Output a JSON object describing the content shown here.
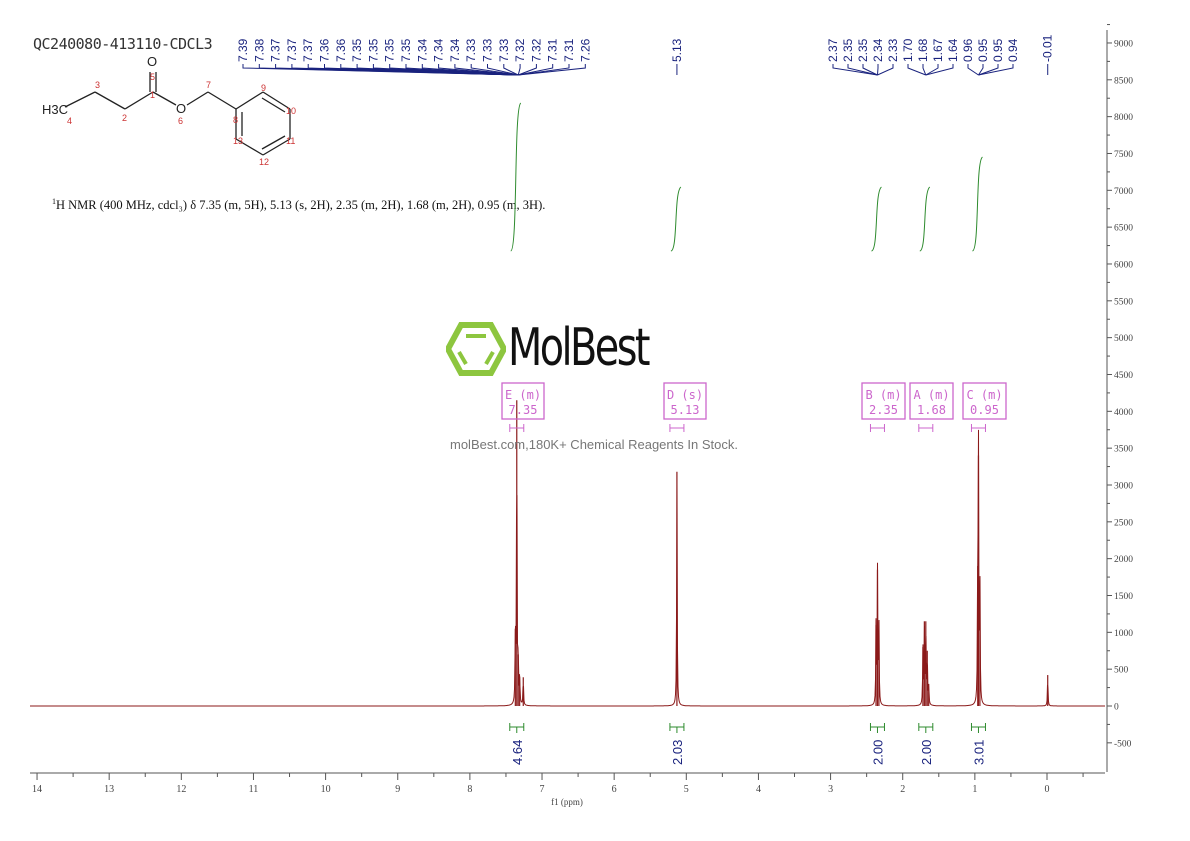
{
  "title": "QC240080-413110-CDCL3",
  "summary": {
    "sup": "1",
    "text": "H NMR (400 MHz, cdcl₃) δ 7.35 (m, 5H), 5.13 (s, 2H), 2.35 (m, 2H), 1.68 (m, 2H), 0.95 (m, 3H)."
  },
  "structure": {
    "atoms": [
      "O",
      "O",
      "H3C"
    ],
    "numbers": [
      "1",
      "2",
      "3",
      "4",
      "5",
      "6",
      "7",
      "8",
      "9",
      "10",
      "11",
      "12",
      "13"
    ]
  },
  "watermark": {
    "logo": "MolBest",
    "tagline": "molBest.com,180K+ Chemical Reagents In Stock.",
    "logo_color": "#8dc63f"
  },
  "colors": {
    "spectrum": "#8b1a1a",
    "peak_labels": "#1a237e",
    "integral": "#2e8b2e",
    "multiplet_box": "#cc66cc",
    "axis": "#555555"
  },
  "chart_data": {
    "type": "line",
    "xlabel": "f1 (ppm)",
    "ylabel": "",
    "xlim": [
      14.1,
      -0.8
    ],
    "ylim": [
      -850,
      9200
    ],
    "x_reversed": true,
    "x_ticks": [
      "14",
      "13",
      "12",
      "11",
      "10",
      "9",
      "8",
      "7",
      "6",
      "5",
      "4",
      "3",
      "2",
      "1",
      "0"
    ],
    "y_ticks": [
      "-500",
      "0",
      "500",
      "1000",
      "1500",
      "2000",
      "2500",
      "3000",
      "3500",
      "4000",
      "4500",
      "5000",
      "5500",
      "6000",
      "6500",
      "7000",
      "7500",
      "8000",
      "8500",
      "9000"
    ],
    "peaks": [
      {
        "ppm": 7.37,
        "intensity": 1050
      },
      {
        "ppm": 7.35,
        "intensity": 4150
      },
      {
        "ppm": 7.33,
        "intensity": 700
      },
      {
        "ppm": 7.31,
        "intensity": 400
      },
      {
        "ppm": 7.26,
        "intensity": 390
      },
      {
        "ppm": 5.13,
        "intensity": 3180
      },
      {
        "ppm": 2.37,
        "intensity": 1100
      },
      {
        "ppm": 2.35,
        "intensity": 1850
      },
      {
        "ppm": 2.33,
        "intensity": 1150
      },
      {
        "ppm": 1.72,
        "intensity": 800
      },
      {
        "ppm": 1.7,
        "intensity": 1150
      },
      {
        "ppm": 1.68,
        "intensity": 1150
      },
      {
        "ppm": 1.66,
        "intensity": 750
      },
      {
        "ppm": 1.64,
        "intensity": 300
      },
      {
        "ppm": 0.96,
        "intensity": 1900
      },
      {
        "ppm": 0.95,
        "intensity": 3400
      },
      {
        "ppm": 0.93,
        "intensity": 1700
      },
      {
        "ppm": -0.01,
        "intensity": 420
      }
    ],
    "peak_labels_aromatic": [
      "7.39",
      "7.38",
      "7.37",
      "7.37",
      "7.37",
      "7.36",
      "7.36",
      "7.35",
      "7.35",
      "7.35",
      "7.35",
      "7.34",
      "7.34",
      "7.34",
      "7.33",
      "7.33",
      "7.33",
      "7.32",
      "7.32",
      "7.31",
      "7.31",
      "7.26"
    ],
    "peak_labels_aliphatic": [
      "2.37",
      "2.35",
      "2.35",
      "2.34",
      "2.33",
      "1.70",
      "1.68",
      "1.67",
      "1.64",
      "0.96",
      "0.95",
      "0.95",
      "0.94"
    ],
    "peak_label_single": [
      "5.13",
      "-0.01"
    ],
    "multiplets": [
      {
        "label": "E (m)",
        "shift": "7.35",
        "ppm": 7.35
      },
      {
        "label": "D (s)",
        "shift": "5.13",
        "ppm": 5.13
      },
      {
        "label": "B (m)",
        "shift": "2.35",
        "ppm": 2.35
      },
      {
        "label": "A (m)",
        "shift": "1.68",
        "ppm": 1.68
      },
      {
        "label": "C (m)",
        "shift": "0.95",
        "ppm": 0.95
      }
    ],
    "integrals": [
      {
        "ppm": 7.35,
        "value": "4.64"
      },
      {
        "ppm": 5.13,
        "value": "2.03"
      },
      {
        "ppm": 2.35,
        "value": "2.00"
      },
      {
        "ppm": 1.68,
        "value": "2.00"
      },
      {
        "ppm": 0.95,
        "value": "3.01"
      }
    ]
  }
}
